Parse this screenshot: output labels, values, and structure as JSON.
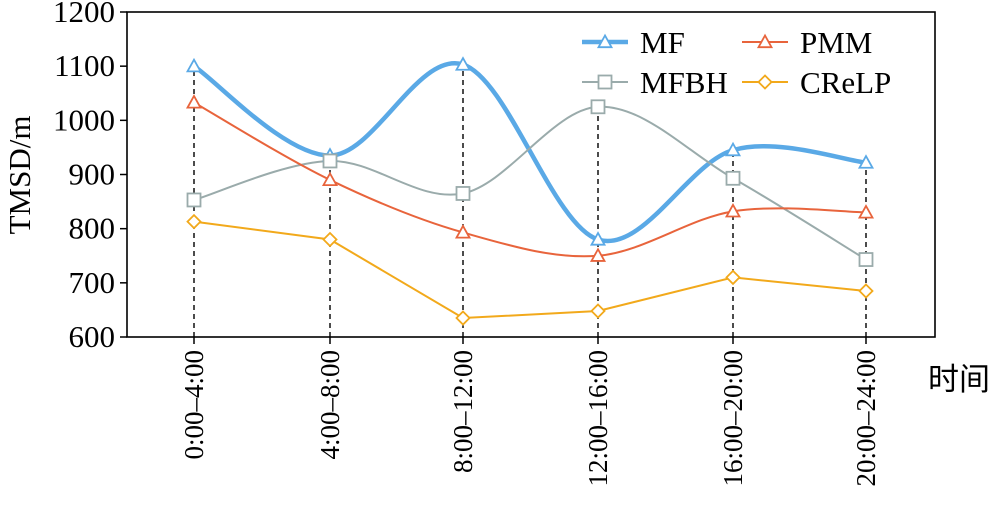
{
  "chart_data": {
    "type": "line",
    "ylabel": "TMSD/m",
    "xlabel": "时间",
    "categories": [
      "0:00–4:00",
      "4:00–8:00",
      "8:00–12:00",
      "12:00–16:00",
      "16:00–20:00",
      "20:00–24:00"
    ],
    "yticks": [
      "600",
      "700",
      "800",
      "900",
      "1000",
      "1100",
      "1200"
    ],
    "ylim": [
      600,
      1200
    ],
    "grid": false,
    "legend_position": "top-right",
    "series": [
      {
        "name": "MF",
        "marker": "triangle",
        "color": "#5aa9e6",
        "smooth": true,
        "values": [
          1100,
          935,
          1103,
          780,
          945,
          922
        ]
      },
      {
        "name": "MFBH",
        "marker": "square",
        "color": "#9aabab",
        "smooth": true,
        "values": [
          853,
          925,
          865,
          1025,
          893,
          743
        ]
      },
      {
        "name": "PMM",
        "marker": "triangle",
        "color": "#e8643c",
        "smooth": true,
        "values": [
          1033,
          890,
          793,
          750,
          832,
          830
        ]
      },
      {
        "name": "CReLP",
        "marker": "diamond",
        "color": "#f2a91b",
        "smooth": false,
        "values": [
          813,
          780,
          635,
          648,
          710,
          685
        ]
      }
    ]
  }
}
